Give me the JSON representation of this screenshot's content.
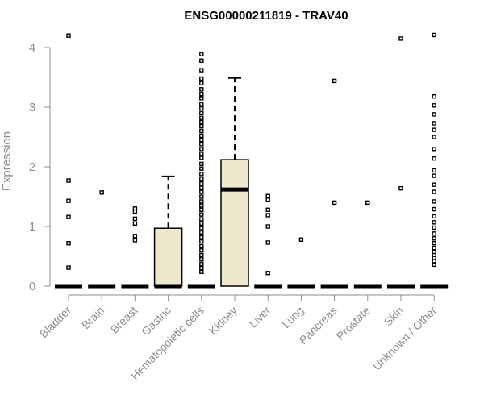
{
  "chart_data": {
    "type": "box",
    "title": "ENSG00000211819 - TRAV40",
    "xlabel": "",
    "ylabel": "Expression",
    "ylim": [
      0,
      4.3
    ],
    "yticks": [
      "0",
      "1",
      "2",
      "3",
      "4"
    ],
    "grid": false,
    "colors": {
      "box_fill": "#efe8cf",
      "box_stroke": "#000000",
      "axis": "#8c8c8c",
      "text": "#8c8c8c"
    },
    "categories": [
      "Bladder",
      "Brain",
      "Breast",
      "Gastric",
      "Hematopoietic cells",
      "Kidney",
      "Liver",
      "Lung",
      "Pancreas",
      "Prostate",
      "Skin",
      "Unknown / Other"
    ],
    "boxes": [
      {
        "category": "Bladder",
        "q1": 0,
        "median": 0,
        "q3": 0,
        "whisker_low": 0,
        "whisker_high": 0,
        "outliers": [
          4.2,
          1.77,
          1.43,
          1.16,
          0.72,
          0.31
        ]
      },
      {
        "category": "Brain",
        "q1": 0,
        "median": 0,
        "q3": 0,
        "whisker_low": 0,
        "whisker_high": 0,
        "outliers": [
          1.57
        ]
      },
      {
        "category": "Breast",
        "q1": 0,
        "median": 0,
        "q3": 0,
        "whisker_low": 0,
        "whisker_high": 0,
        "outliers": [
          1.3,
          1.25,
          1.13,
          1.05,
          0.84,
          0.77
        ]
      },
      {
        "category": "Gastric",
        "q1": 0,
        "median": 0,
        "q3": 0.97,
        "whisker_low": 0,
        "whisker_high": 1.84,
        "outliers": []
      },
      {
        "category": "Hematopoietic cells",
        "q1": 0,
        "median": 0,
        "q3": 0,
        "whisker_low": 0,
        "whisker_high": 0,
        "outliers": [
          3.89,
          3.78,
          3.62,
          3.48,
          3.4,
          3.3,
          3.22,
          3.15,
          3.05,
          2.98,
          2.9,
          2.82,
          2.75,
          2.68,
          2.6,
          2.52,
          2.45,
          2.38,
          2.3,
          2.22,
          2.15,
          2.05,
          1.97,
          1.88,
          1.8,
          1.72,
          1.65,
          1.58,
          1.5,
          1.42,
          1.35,
          1.28,
          1.2,
          1.12,
          1.05,
          0.97,
          0.9,
          0.82,
          0.75,
          0.67,
          0.6,
          0.52,
          0.45,
          0.37,
          0.3,
          0.24
        ]
      },
      {
        "category": "Kidney",
        "q1": 0,
        "median": 1.62,
        "q3": 2.12,
        "whisker_low": 0,
        "whisker_high": 3.49,
        "outliers": []
      },
      {
        "category": "Liver",
        "q1": 0,
        "median": 0,
        "q3": 0,
        "whisker_low": 0,
        "whisker_high": 0,
        "outliers": [
          1.51,
          1.45,
          1.28,
          1.19,
          1.0,
          0.73,
          0.22
        ]
      },
      {
        "category": "Lung",
        "q1": 0,
        "median": 0,
        "q3": 0,
        "whisker_low": 0,
        "whisker_high": 0,
        "outliers": [
          0.78
        ]
      },
      {
        "category": "Pancreas",
        "q1": 0,
        "median": 0,
        "q3": 0,
        "whisker_low": 0,
        "whisker_high": 0,
        "outliers": [
          3.44,
          1.4
        ]
      },
      {
        "category": "Prostate",
        "q1": 0,
        "median": 0,
        "q3": 0,
        "whisker_low": 0,
        "whisker_high": 0,
        "outliers": [
          1.4
        ]
      },
      {
        "category": "Skin",
        "q1": 0,
        "median": 0,
        "q3": 0,
        "whisker_low": 0,
        "whisker_high": 0,
        "outliers": [
          4.15,
          1.64
        ]
      },
      {
        "category": "Unknown / Other",
        "q1": 0,
        "median": 0,
        "q3": 0,
        "whisker_low": 0,
        "whisker_high": 0,
        "outliers": [
          4.21,
          3.18,
          3.03,
          2.88,
          2.73,
          2.62,
          2.5,
          2.3,
          2.14,
          1.94,
          1.85,
          1.7,
          1.58,
          1.42,
          1.29,
          1.17,
          1.07,
          0.98,
          0.88,
          0.8,
          0.72,
          0.64,
          0.57,
          0.52,
          0.47,
          0.42,
          0.36
        ]
      }
    ]
  }
}
